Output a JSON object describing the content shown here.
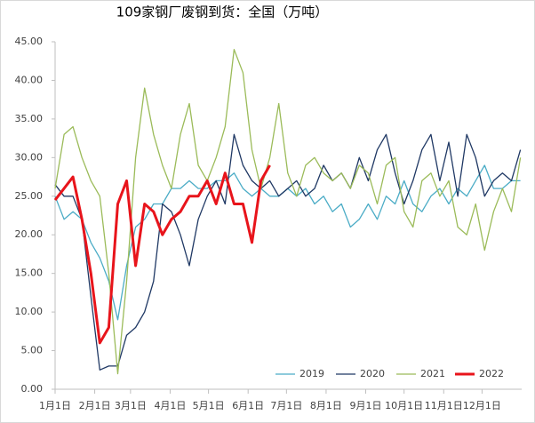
{
  "chart_data": {
    "type": "line",
    "title": "109家钢厂废钢到货：全国（万吨）",
    "x": [
      0,
      7,
      14,
      21,
      28,
      35,
      42,
      49,
      56,
      63,
      70,
      77,
      84,
      91,
      98,
      105,
      112,
      119,
      126,
      133,
      140,
      147,
      154,
      161,
      168,
      175,
      182,
      189,
      196,
      203,
      210,
      217,
      224,
      231,
      238,
      245,
      252,
      259,
      266,
      273,
      280,
      287,
      294,
      301,
      308,
      315,
      322,
      329,
      336,
      343,
      350,
      357,
      364
    ],
    "xlim": [
      0,
      365
    ],
    "xticks": [
      {
        "value": 0,
        "label": "1月1日"
      },
      {
        "value": 31,
        "label": "2月1日"
      },
      {
        "value": 59,
        "label": "3月1日"
      },
      {
        "value": 90,
        "label": "4月1日"
      },
      {
        "value": 120,
        "label": "5月1日"
      },
      {
        "value": 151,
        "label": "6月1日"
      },
      {
        "value": 181,
        "label": "7月1日"
      },
      {
        "value": 212,
        "label": "8月1日"
      },
      {
        "value": 243,
        "label": "9月1日"
      },
      {
        "value": 273,
        "label": "10月1日"
      },
      {
        "value": 304,
        "label": "11月1日"
      },
      {
        "value": 334,
        "label": "12月1日"
      }
    ],
    "ylim": [
      0,
      45
    ],
    "yticks": [
      {
        "value": 0,
        "label": "0.00"
      },
      {
        "value": 5,
        "label": "5.00"
      },
      {
        "value": 10,
        "label": "10.00"
      },
      {
        "value": 15,
        "label": "15.00"
      },
      {
        "value": 20,
        "label": "20.00"
      },
      {
        "value": 25,
        "label": "25.00"
      },
      {
        "value": 30,
        "label": "30.00"
      },
      {
        "value": 35,
        "label": "35.00"
      },
      {
        "value": 40,
        "label": "40.00"
      },
      {
        "value": 45,
        "label": "45.00"
      }
    ],
    "legend": "bottom",
    "series": [
      {
        "name": "2019",
        "color": "#4bacc6",
        "width": 1.3,
        "values": [
          25,
          22,
          23,
          22,
          19,
          17,
          14,
          9,
          16,
          21,
          22,
          24,
          24,
          26,
          26,
          27,
          26,
          26,
          27,
          27,
          28,
          26,
          25,
          26,
          25,
          25,
          26,
          25,
          26,
          24,
          25,
          23,
          24,
          21,
          22,
          24,
          22,
          25,
          24,
          27,
          24,
          23,
          25,
          26,
          24,
          26,
          25,
          27,
          29,
          26,
          26,
          27,
          27
        ]
      },
      {
        "name": "2020",
        "color": "#1f3864",
        "width": 1.3,
        "values": [
          26.5,
          25,
          25,
          22,
          12,
          2.5,
          3,
          3,
          7,
          8,
          10,
          14,
          24,
          23,
          20,
          16,
          22,
          25,
          27,
          24,
          33,
          29,
          27,
          26,
          27,
          25,
          26,
          27,
          25,
          26,
          29,
          27,
          28,
          26,
          30,
          27,
          31,
          33,
          28,
          24,
          27,
          31,
          33,
          27,
          32,
          25,
          33,
          30,
          25,
          27,
          28,
          27,
          31
        ]
      },
      {
        "name": "2021",
        "color": "#9bbb59",
        "width": 1.3,
        "values": [
          26,
          33,
          34,
          30,
          27,
          25,
          15,
          2,
          14,
          30,
          39,
          33,
          29,
          26,
          33,
          37,
          29,
          27,
          30,
          34,
          44,
          41,
          31,
          26,
          30,
          37,
          28,
          25,
          29,
          30,
          28,
          27,
          28,
          26,
          29,
          28,
          24,
          29,
          30,
          23,
          21,
          27,
          28,
          25,
          27,
          21,
          20,
          24,
          18,
          23,
          26,
          23,
          30
        ]
      },
      {
        "name": "2022",
        "color": "#e8141b",
        "width": 3,
        "values": [
          24.5,
          26,
          27.5,
          22,
          15,
          6,
          8,
          24,
          27,
          16,
          24,
          23,
          20,
          22,
          23,
          25,
          25,
          27,
          24,
          28,
          24,
          24,
          19,
          27,
          29,
          null,
          null,
          null,
          null,
          null,
          null,
          null,
          null,
          null,
          null,
          null,
          null,
          null,
          null,
          null,
          null,
          null,
          null,
          null,
          null,
          null,
          null,
          null,
          null,
          null,
          null,
          null,
          null
        ]
      }
    ]
  }
}
